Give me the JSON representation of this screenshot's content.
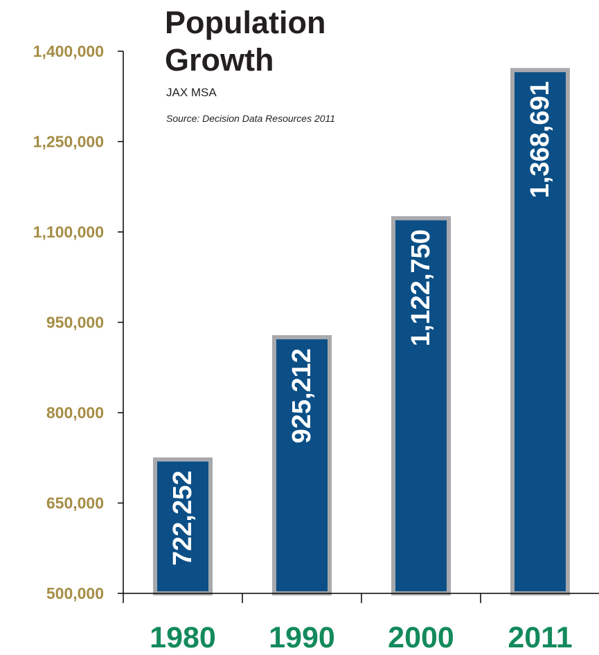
{
  "title": "Population Growth",
  "subtitle": "JAX MSA",
  "source": "Source:  Decision Data Resources 2011",
  "colors": {
    "bar_fill": "#0b4f86",
    "bar_border": "#a7a9ac",
    "y_tick_text": "#a58d45",
    "x_tick_text": "#138a5b",
    "axis": "#000000",
    "bar_label": "#ffffff"
  },
  "chart_data": {
    "type": "bar",
    "categories": [
      "1980",
      "1990",
      "2000",
      "2011"
    ],
    "values": [
      722252,
      925212,
      1122750,
      1368691
    ],
    "data_labels": [
      "722,252",
      "925,212",
      "1,122,750",
      "1,368,691"
    ],
    "title": "Population Growth",
    "subtitle": "JAX MSA",
    "xlabel": "",
    "ylabel": "",
    "ylim": [
      500000,
      1400000
    ],
    "y_ticks": [
      500000,
      650000,
      800000,
      950000,
      1100000,
      1250000,
      1400000
    ],
    "y_tick_labels": [
      "500,000",
      "650,000",
      "800,000",
      "950,000",
      "1,100,000",
      "1,250,000",
      "1,400,000"
    ],
    "grid": false,
    "legend": "none",
    "data_label_orientation": "vertical"
  }
}
